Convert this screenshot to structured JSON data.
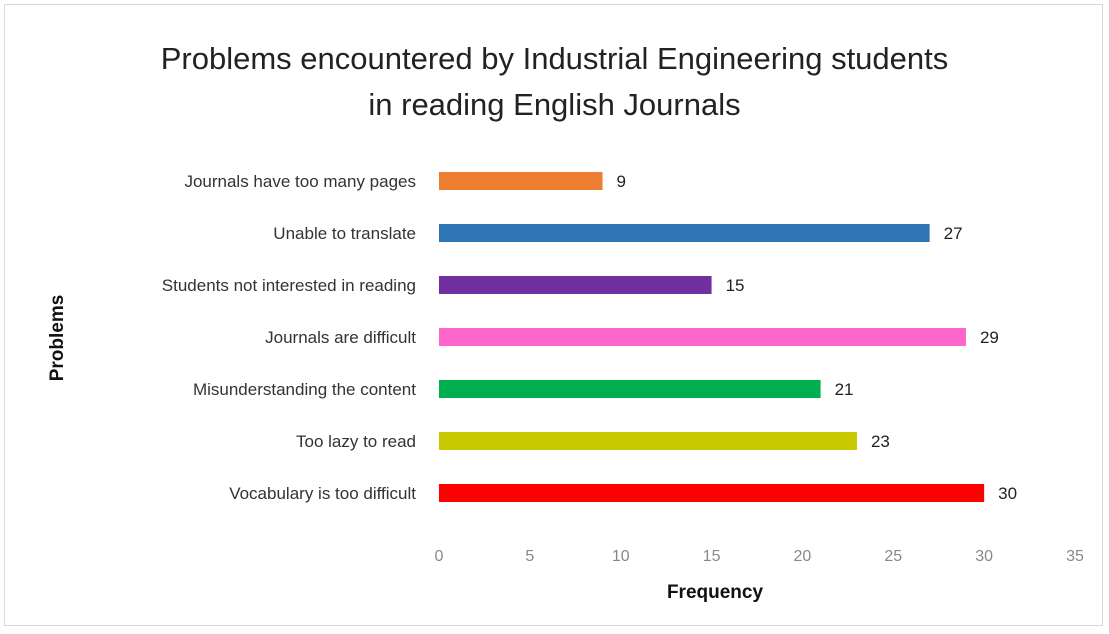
{
  "chart_data": {
    "type": "bar",
    "orientation": "horizontal",
    "title_lines": [
      "Problems encountered by Industrial Engineering students",
      "in reading English Journals"
    ],
    "xlabel": "Frequency",
    "ylabel": "Problems",
    "xlim": [
      0,
      35
    ],
    "xticks": [
      0,
      5,
      10,
      15,
      20,
      25,
      30,
      35
    ],
    "grid": false,
    "legend": "none",
    "categories": [
      "Journals have too many pages",
      "Unable to translate",
      "Students not interested in reading",
      "Journals are difficult",
      "Misunderstanding the content",
      "Too lazy to read",
      "Vocabulary is too difficult"
    ],
    "values": [
      9,
      27,
      15,
      29,
      21,
      23,
      30
    ],
    "colors": [
      "#ed7d31",
      "#2e75b6",
      "#7030a0",
      "#ff66cc",
      "#00b050",
      "#c9c900",
      "#ff0000"
    ]
  }
}
